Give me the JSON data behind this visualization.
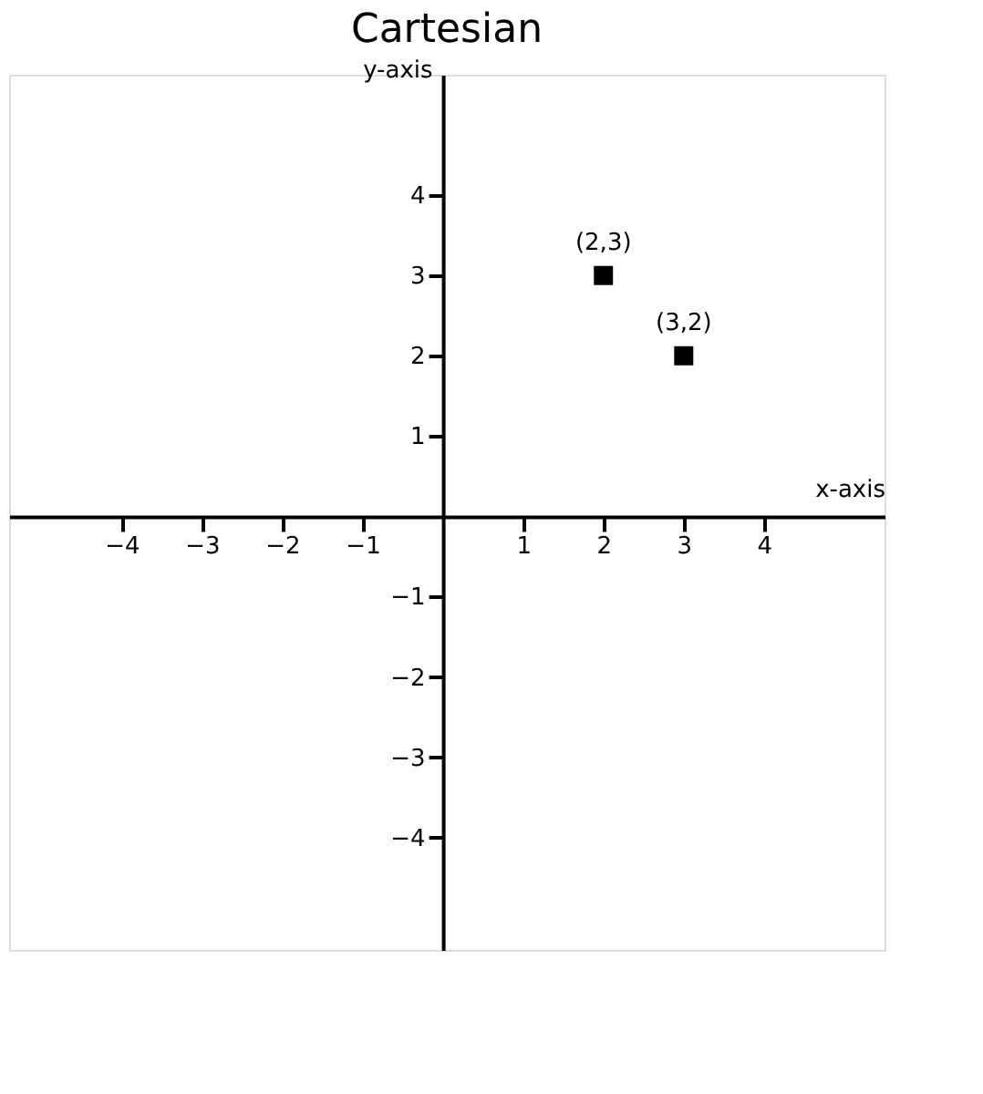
{
  "chart_data": {
    "type": "scatter",
    "title": "Cartesian",
    "xlabel": "x-axis",
    "ylabel": "y-axis",
    "x": [
      2,
      3
    ],
    "series": [
      {
        "color": "#000000",
        "values": [
          3,
          2
        ]
      }
    ],
    "marker": "square",
    "grid": false,
    "xlim": [
      -5.4,
      5.5
    ],
    "ylim": [
      -5.4,
      5.5
    ],
    "xticks": [
      -4,
      -3,
      -2,
      -1,
      1,
      2,
      3,
      4
    ],
    "yticks": [
      -4,
      -3,
      -2,
      -1,
      1,
      2,
      3,
      4
    ],
    "annotations": [
      {
        "text": "(2,3)",
        "x": 2,
        "y": 3
      },
      {
        "text": "(3,2)",
        "x": 3,
        "y": 2
      }
    ]
  }
}
